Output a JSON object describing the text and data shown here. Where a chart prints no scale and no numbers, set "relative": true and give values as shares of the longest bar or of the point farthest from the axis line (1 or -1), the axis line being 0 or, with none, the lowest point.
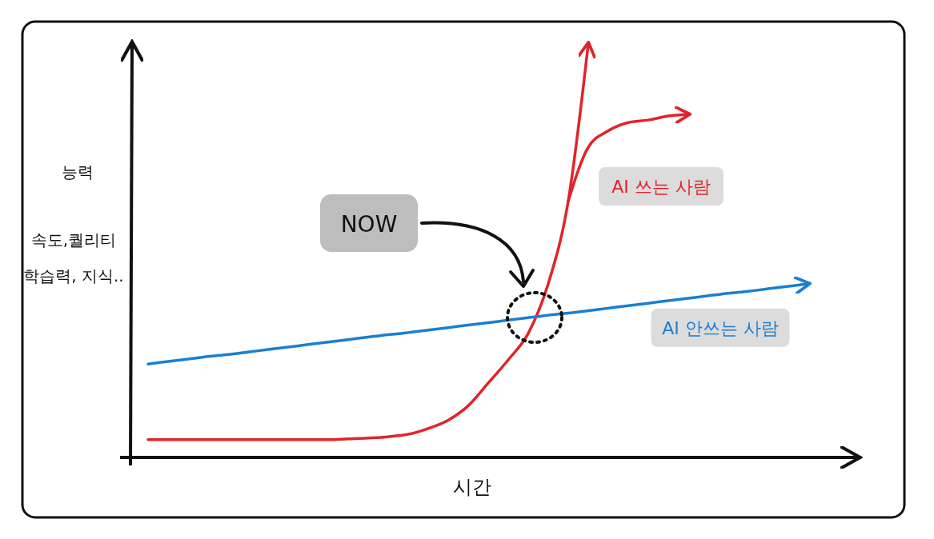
{
  "chart_data": {
    "type": "line",
    "relative": true,
    "xlabel": "시간",
    "ylabel": "능력",
    "marker": "none",
    "line_style": "solid",
    "categories": [
      null,
      null,
      null,
      null,
      null,
      null,
      null,
      null,
      null,
      null,
      null,
      null,
      null,
      null,
      null,
      null,
      null,
      null,
      null,
      null,
      null,
      null,
      null,
      null,
      null,
      null,
      null,
      null,
      null,
      null,
      null,
      null,
      null,
      null
    ],
    "series": [
      {
        "name": "AI 쓰는 사람",
        "color": "#e0242b",
        "values": [
          0.043,
          0.043,
          0.043,
          0.043,
          0.043,
          0.043,
          0.043,
          0.043,
          0.043,
          0.043,
          0.045,
          0.047,
          0.05,
          0.056,
          0.07,
          0.09,
          0.125,
          0.18,
          0.236,
          0.3,
          0.42,
          0.62,
          1.0,
          null,
          null,
          null,
          null,
          null,
          null,
          null,
          null,
          null,
          null,
          null
        ]
      },
      {
        "color": "#e0242b",
        "values": [
          null,
          null,
          null,
          null,
          null,
          null,
          null,
          null,
          null,
          null,
          null,
          null,
          null,
          null,
          null,
          null,
          null,
          null,
          null,
          null,
          null,
          0.62,
          0.75,
          0.79,
          0.81,
          0.816,
          0.826,
          0.83,
          null,
          null,
          null,
          null,
          null,
          null
        ]
      },
      {
        "name": "AI 안쓰는 사람",
        "color": "#1a7fd0",
        "values": [
          0.226,
          0.232,
          0.238,
          0.244,
          0.249,
          0.255,
          0.261,
          0.267,
          0.273,
          0.279,
          0.285,
          0.291,
          0.297,
          0.302,
          0.308,
          0.314,
          0.32,
          0.326,
          0.332,
          0.338,
          0.344,
          0.349,
          0.355,
          0.361,
          0.367,
          0.373,
          0.379,
          0.385,
          0.391,
          0.397,
          0.402,
          0.408,
          0.414,
          0.42
        ]
      }
    ],
    "annotations": [
      "속도,퀄리티",
      "학습력, 지식..",
      "NOW"
    ]
  }
}
